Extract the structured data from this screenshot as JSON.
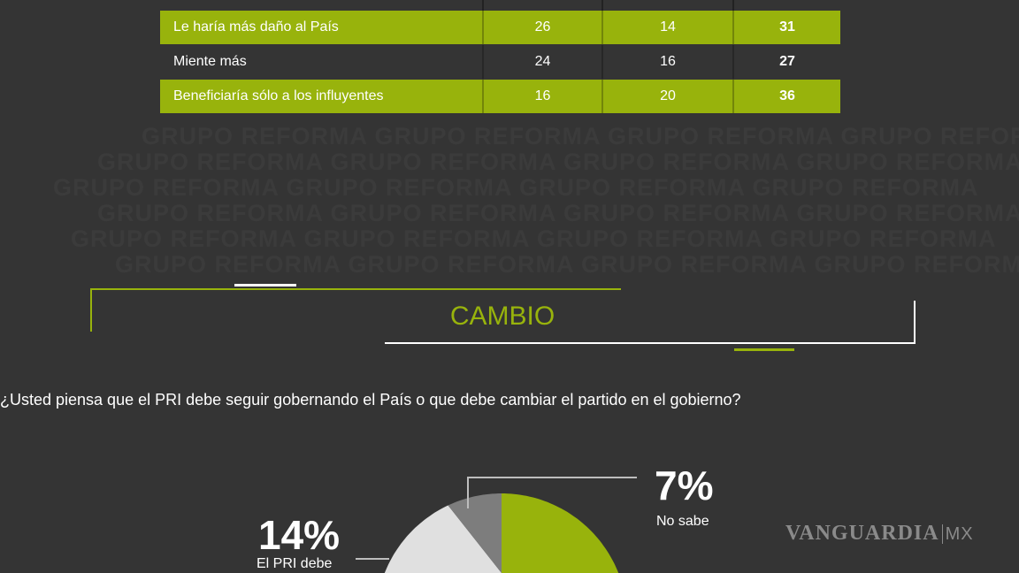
{
  "watermark": "GRUPO REFORMA  GRUPO REFORMA  GRUPO REFORMA  GRUPO REFORMA",
  "table": {
    "rows": [
      {
        "label": "Le haría más daño al País",
        "values": [
          "26",
          "14",
          "31"
        ],
        "highlight": true
      },
      {
        "label": "Miente más",
        "values": [
          "24",
          "16",
          "27"
        ],
        "highlight": false
      },
      {
        "label": "Beneficiaría sólo a los influyentes",
        "values": [
          "16",
          "20",
          "36"
        ],
        "highlight": true
      }
    ]
  },
  "section": {
    "title": "CAMBIO"
  },
  "question": "¿Usted piensa que el PRI debe seguir gobernando el País o que debe cambiar el partido en el gobierno?",
  "chart_data": {
    "type": "pie",
    "slices": [
      {
        "label": "No sabe",
        "value": 7,
        "display": "7%",
        "color": "#7d7d7d"
      },
      {
        "label": "El PRI debe",
        "value": 14,
        "display": "14%",
        "color": "#e0e0e0"
      },
      {
        "label": "",
        "value": 79,
        "color": "#98b30c"
      }
    ]
  },
  "colors": {
    "accent": "#98b30c",
    "background": "#343434"
  },
  "logo": {
    "name": "VANGUARDIA",
    "suffix": "MX"
  }
}
